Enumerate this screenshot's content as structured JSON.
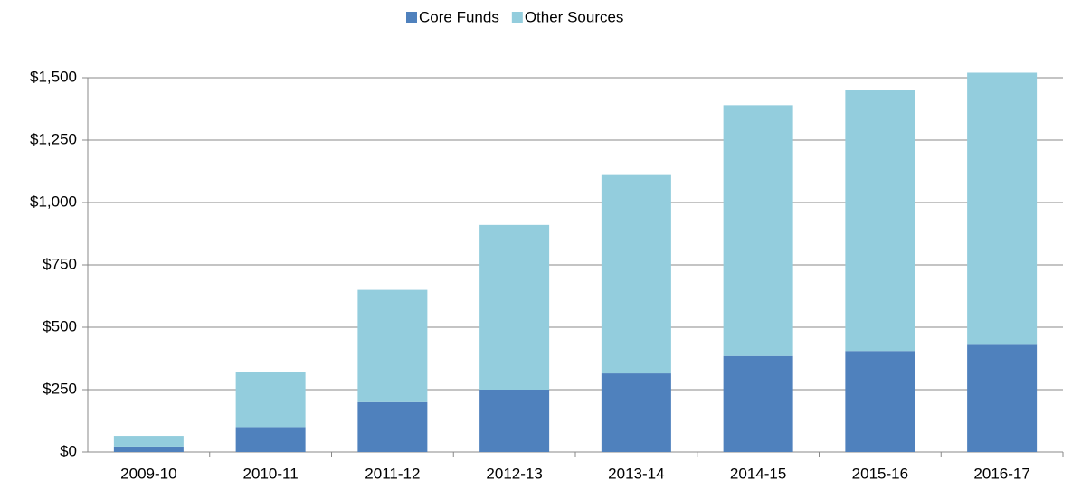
{
  "chart_data": {
    "type": "stacked_bar",
    "categories": [
      "2009-10",
      "2010-11",
      "2011-12",
      "2012-13",
      "2013-14",
      "2014-15",
      "2015-16",
      "2016-17"
    ],
    "series": [
      {
        "name": "Core Funds",
        "color": "#4f81bd",
        "values": [
          22,
          100,
          200,
          250,
          315,
          385,
          405,
          430
        ]
      },
      {
        "name": "Other Sources",
        "color": "#93cddd",
        "values": [
          43,
          220,
          450,
          660,
          795,
          1005,
          1045,
          1090
        ]
      }
    ],
    "ylim": [
      0,
      1500
    ],
    "yticks": [
      {
        "value": 0,
        "label": "$0"
      },
      {
        "value": 250,
        "label": "$250"
      },
      {
        "value": 500,
        "label": "$500"
      },
      {
        "value": 750,
        "label": "$750"
      },
      {
        "value": 1000,
        "label": "$1,000"
      },
      {
        "value": 1250,
        "label": "$1,250"
      },
      {
        "value": 1500,
        "label": "$1,500"
      }
    ],
    "grid": true,
    "legend": "top"
  }
}
